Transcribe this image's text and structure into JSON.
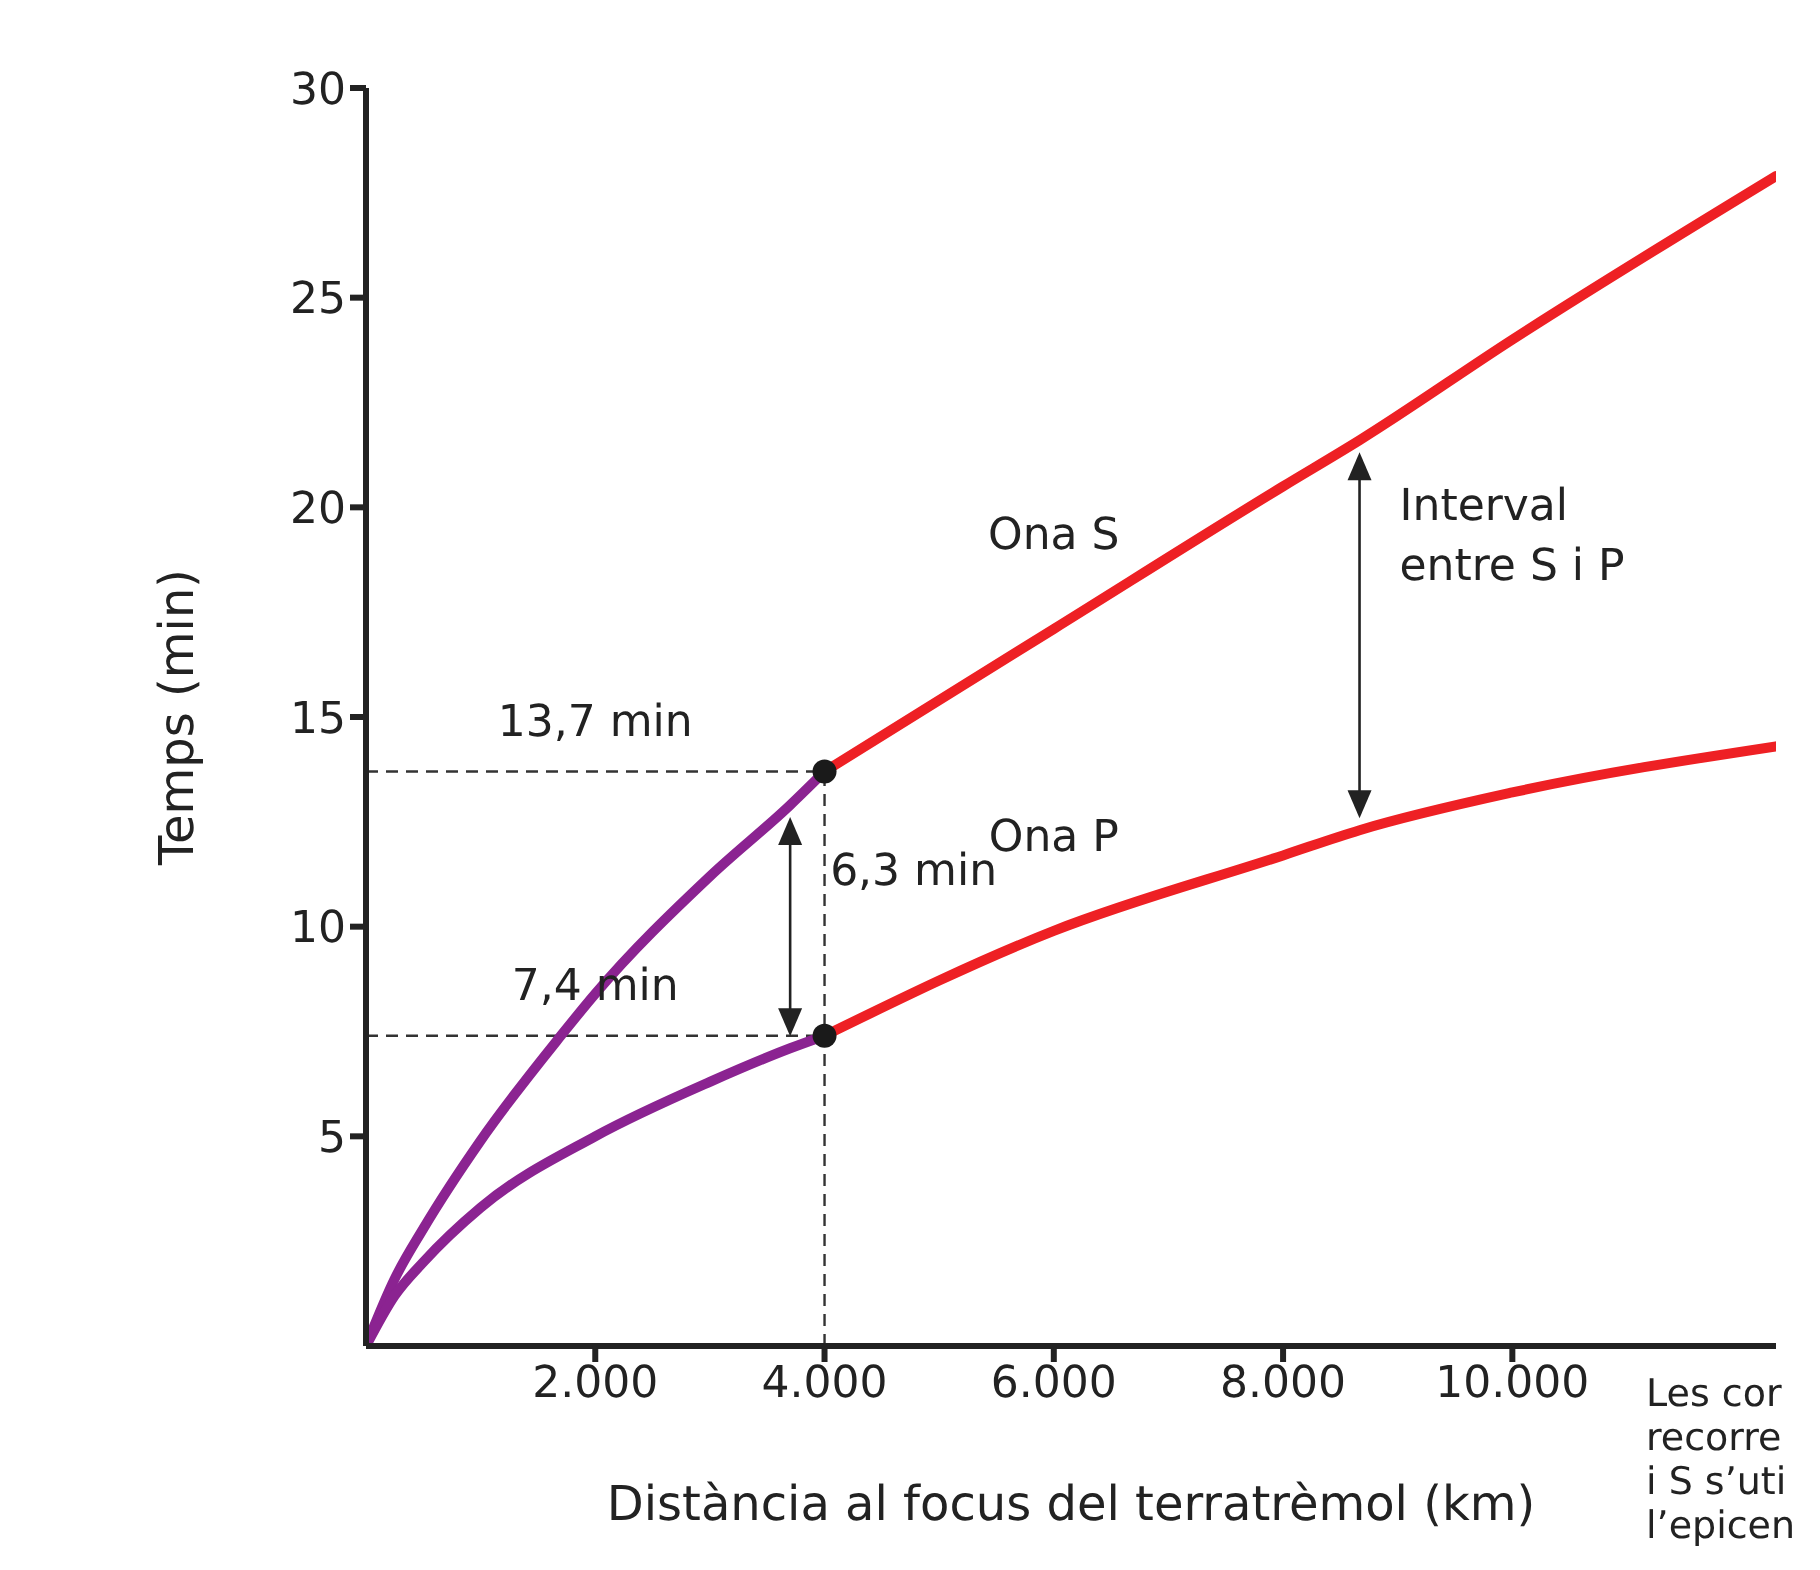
{
  "chart_data": {
    "type": "line",
    "xlabel": "Distància al focus del terratrèmol (km)",
    "ylabel": "Temps (min)",
    "xlim": [
      0,
      12300
    ],
    "ylim": [
      0,
      30
    ],
    "xticks": [
      {
        "value": 2000,
        "label": "2.000"
      },
      {
        "value": 4000,
        "label": "4.000"
      },
      {
        "value": 6000,
        "label": "6.000"
      },
      {
        "value": 8000,
        "label": "8.000"
      },
      {
        "value": 10000,
        "label": "10.000"
      }
    ],
    "yticks": [
      5,
      10,
      15,
      20,
      25,
      30
    ],
    "line_style": "solid",
    "series": [
      {
        "color": "#8b2391",
        "x": [
          0,
          250,
          500,
          1000,
          1700,
          2000,
          3000,
          3700,
          4000
        ],
        "values": [
          0,
          1.6,
          2.8,
          4.9,
          7.4,
          8.4,
          11.2,
          12.9,
          13.7
        ]
      },
      {
        "name": "Ona S",
        "color": "#ee2024",
        "x": [
          4000,
          6000,
          8000,
          8667,
          10000,
          12300
        ],
        "values": [
          13.7,
          17.1,
          20.5,
          21.6,
          24.0,
          27.9
        ]
      },
      {
        "color": "#8b2391",
        "x": [
          0,
          250,
          500,
          1000,
          2000,
          3000,
          3700,
          4000
        ],
        "values": [
          0,
          1.2,
          2.0,
          3.3,
          5.0,
          6.3,
          7.1,
          7.4
        ]
      },
      {
        "name": "Ona P",
        "color": "#ee2024",
        "x": [
          4000,
          6000,
          8000,
          8667,
          10000,
          12300
        ],
        "values": [
          7.4,
          9.9,
          11.7,
          12.3,
          13.2,
          14.3
        ]
      },
      {
        "type": "scatter",
        "color": "#1a1a1a",
        "x": [
          4000,
          4000
        ],
        "values": [
          7.4,
          13.7
        ]
      }
    ],
    "ref_lines": [
      {
        "axis": "y",
        "value": 13.7,
        "label": "13,7 min",
        "line_style": "dashed",
        "color": "#333333"
      },
      {
        "axis": "y",
        "value": 7.4,
        "label": "7,4 min",
        "line_style": "dashed",
        "color": "#333333"
      },
      {
        "axis": "x",
        "value": 4000,
        "line_style": "dashed",
        "color": "#333333"
      }
    ],
    "annotations": [
      {
        "text": "6,3 min",
        "x": 3700,
        "y": 12.9
      },
      {
        "text": "Interval entre S i P",
        "x": 8667,
        "y": 21.6
      },
      "Les cor\nrecorre\ni S s’uti\nl’epicen"
    ]
  }
}
